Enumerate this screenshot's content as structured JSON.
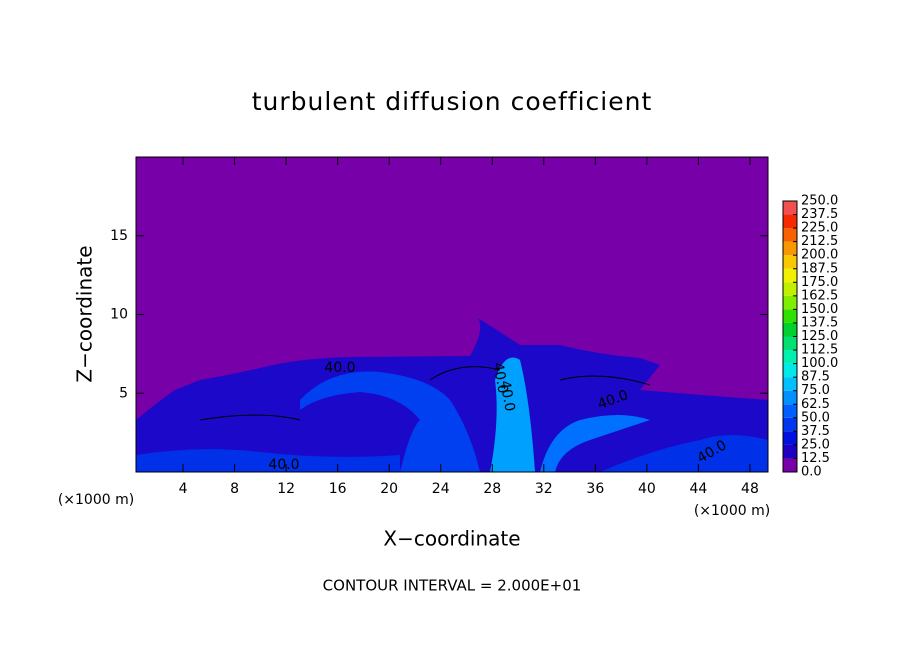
{
  "chart_data": {
    "type": "contour",
    "title": "turbulent diffusion coefficient",
    "x_label": "X−coordinate",
    "y_label": "Z−coordinate",
    "x_unit": "(×1000 m)",
    "y_unit": "(×1000 m)",
    "footer": "CONTOUR INTERVAL = 2.000E+01",
    "xlim": [
      0.35,
      49.4
    ],
    "ylim": [
      0,
      20
    ],
    "xticks": [
      4,
      8,
      12,
      16,
      20,
      24,
      28,
      32,
      36,
      40,
      44,
      48
    ],
    "yticks": [
      5,
      10,
      15
    ],
    "contour_labels": [
      "40.0",
      "40.0",
      "40.0",
      "40.0",
      "40.0",
      "40.0"
    ],
    "colorbar_ticks": [
      {
        "value": 0,
        "label": "0.0"
      },
      {
        "value": 12.5,
        "label": "12.5"
      },
      {
        "value": 25,
        "label": "25.0"
      },
      {
        "value": 37.5,
        "label": "37.5"
      },
      {
        "value": 50,
        "label": "50.0"
      },
      {
        "value": 62.5,
        "label": "62.5"
      },
      {
        "value": 75,
        "label": "75.0"
      },
      {
        "value": 87.5,
        "label": "87.5"
      },
      {
        "value": 100,
        "label": "100.0"
      },
      {
        "value": 112.5,
        "label": "112.5"
      },
      {
        "value": 125,
        "label": "125.0"
      },
      {
        "value": 137.5,
        "label": "137.5"
      },
      {
        "value": 150,
        "label": "150.0"
      },
      {
        "value": 162.5,
        "label": "162.5"
      },
      {
        "value": 175,
        "label": "175.0"
      },
      {
        "value": 187.5,
        "label": "187.5"
      },
      {
        "value": 200,
        "label": "200.0"
      },
      {
        "value": 212.5,
        "label": "212.5"
      },
      {
        "value": 225,
        "label": "225.0"
      },
      {
        "value": 237.5,
        "label": "237.5"
      },
      {
        "value": 250,
        "label": "250.0"
      }
    ],
    "colorbar_colors": [
      "#7800a8",
      "#2000c0",
      "#0010e0",
      "#0038f0",
      "#0060ff",
      "#0090ff",
      "#00c0ff",
      "#00e8e8",
      "#00f0b0",
      "#00e070",
      "#00d030",
      "#30e000",
      "#80ee00",
      "#c0f000",
      "#f0f000",
      "#f8c800",
      "#f89800",
      "#f86000",
      "#f82800",
      "#f05050"
    ]
  }
}
